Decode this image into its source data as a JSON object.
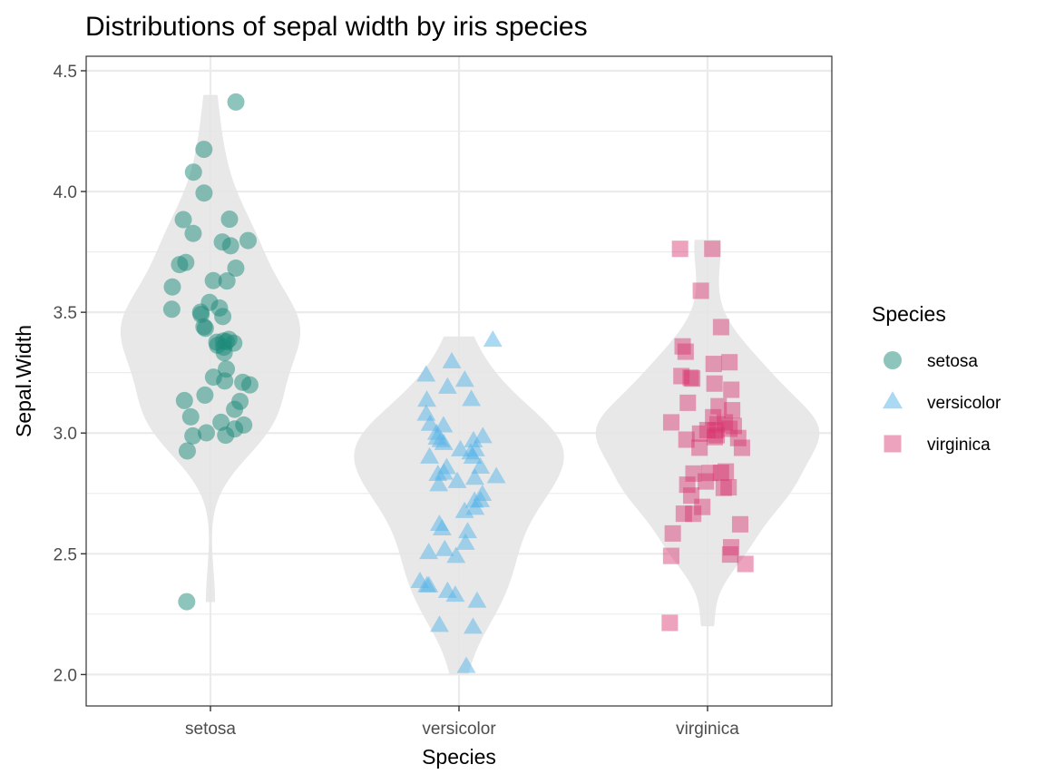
{
  "chart_data": {
    "type": "violin-jitter",
    "title": "Distributions of sepal width by iris species",
    "xlabel": "Species",
    "ylabel": "Sepal.Width",
    "categories": [
      "setosa",
      "versicolor",
      "virginica"
    ],
    "ylim": [
      1.87,
      4.56
    ],
    "yticks": [
      2.0,
      2.5,
      3.0,
      3.5,
      4.0,
      4.5
    ],
    "ytick_labels": [
      "2.0",
      "2.5",
      "3.0",
      "3.5",
      "4.0",
      "4.5"
    ],
    "grid": true,
    "legend": {
      "title": "Species",
      "placement": "right",
      "entries": [
        {
          "label": "setosa",
          "shape": "circle",
          "color": "#1B8A7A"
        },
        {
          "label": "versicolor",
          "shape": "triangle",
          "color": "#56B4E9"
        },
        {
          "label": "virginica",
          "shape": "square",
          "color": "#D6336C"
        }
      ]
    },
    "violin_color": "#E6E6E6",
    "series": [
      {
        "name": "setosa",
        "shape": "circle",
        "color": "#1B8A7A",
        "values": [
          3.5,
          3.0,
          3.2,
          3.1,
          3.6,
          3.9,
          3.4,
          3.4,
          2.9,
          3.1,
          3.7,
          3.4,
          3.0,
          3.0,
          4.0,
          4.4,
          3.9,
          3.5,
          3.8,
          3.8,
          3.4,
          3.7,
          3.6,
          3.3,
          3.4,
          3.0,
          3.4,
          3.5,
          3.4,
          3.2,
          3.1,
          3.4,
          4.1,
          4.2,
          3.1,
          3.2,
          3.5,
          3.6,
          3.0,
          3.4,
          3.5,
          2.3,
          3.2,
          3.5,
          3.8,
          3.0,
          3.8,
          3.2,
          3.7,
          3.3
        ]
      },
      {
        "name": "versicolor",
        "shape": "triangle",
        "color": "#56B4E9",
        "values": [
          3.2,
          3.2,
          3.1,
          2.3,
          2.8,
          2.8,
          3.3,
          2.4,
          2.9,
          2.7,
          2.0,
          3.0,
          2.2,
          2.9,
          2.9,
          3.1,
          3.0,
          2.7,
          2.2,
          2.5,
          3.2,
          2.8,
          2.5,
          2.8,
          2.9,
          3.0,
          2.8,
          3.0,
          2.9,
          2.6,
          2.4,
          2.4,
          2.7,
          2.7,
          3.0,
          3.4,
          3.1,
          2.3,
          3.0,
          2.5,
          2.6,
          3.0,
          2.6,
          2.3,
          2.7,
          3.0,
          2.9,
          2.9,
          2.5,
          2.8
        ]
      },
      {
        "name": "virginica",
        "shape": "square",
        "color": "#D6336C",
        "values": [
          3.3,
          2.7,
          3.0,
          2.9,
          3.0,
          3.0,
          2.5,
          2.9,
          2.5,
          3.6,
          3.2,
          2.7,
          3.0,
          2.5,
          2.8,
          3.2,
          3.0,
          3.8,
          2.6,
          2.2,
          3.2,
          2.8,
          2.8,
          2.7,
          3.3,
          3.2,
          2.8,
          3.0,
          2.8,
          3.0,
          2.8,
          3.8,
          2.8,
          2.8,
          2.6,
          3.0,
          3.4,
          3.1,
          3.0,
          3.1,
          3.1,
          3.1,
          2.7,
          3.2,
          3.3,
          3.0,
          2.5,
          3.0,
          3.4,
          3.0
        ]
      }
    ]
  }
}
